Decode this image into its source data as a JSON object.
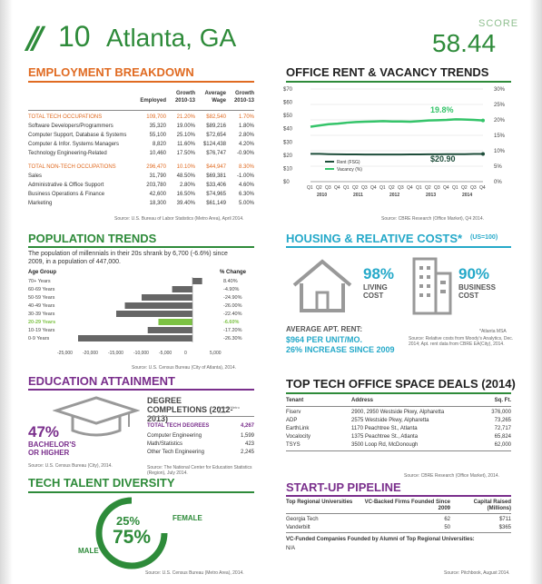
{
  "header": {
    "slashes": "//",
    "rank": "10",
    "city": "Atlanta, GA",
    "score_label": "SCORE",
    "score": "58.44"
  },
  "employment": {
    "title": "EMPLOYMENT BREAKDOWN",
    "col_headers": [
      "Employed",
      "Growth 2010-13",
      "Average Wage",
      "Growth 2010-13"
    ],
    "rows": [
      {
        "label": "TOTAL TECH OCCUPATIONS",
        "employed": "109,700",
        "growth": "21.20%",
        "wage": "$82,540",
        "wgrowth": "1.70%",
        "highlight": true
      },
      {
        "label": "Software Developers/Programmers",
        "employed": "35,320",
        "growth": "19.00%",
        "wage": "$89,216",
        "wgrowth": "1.80%"
      },
      {
        "label": "Computer Support, Database & Systems",
        "employed": "55,100",
        "growth": "25.10%",
        "wage": "$72,654",
        "wgrowth": "2.80%"
      },
      {
        "label": "Computer & Infor. Systems Managers",
        "employed": "8,820",
        "growth": "11.60%",
        "wage": "$124,438",
        "wgrowth": "4.20%"
      },
      {
        "label": "Technology Engineering-Related",
        "employed": "10,460",
        "growth": "17.50%",
        "wage": "$76,747",
        "wgrowth": "-0.90%"
      },
      {
        "label": "TOTAL NON-TECH OCCUPATIONS",
        "employed": "296,470",
        "growth": "10.10%",
        "wage": "$44,947",
        "wgrowth": "8.30%",
        "highlight": true
      },
      {
        "label": "Sales",
        "employed": "31,790",
        "growth": "48.50%",
        "wage": "$69,381",
        "wgrowth": "-1.00%"
      },
      {
        "label": "Administrative & Office Support",
        "employed": "203,780",
        "growth": "2.80%",
        "wage": "$33,406",
        "wgrowth": "4.60%"
      },
      {
        "label": "Business Operations & Finance",
        "employed": "42,600",
        "growth": "16.50%",
        "wage": "$74,965",
        "wgrowth": "6.30%"
      },
      {
        "label": "Marketing",
        "employed": "18,300",
        "growth": "39.40%",
        "wage": "$61,149",
        "wgrowth": "5.00%"
      }
    ],
    "source": "Source: U.S. Bureau of Labor Statistics (Metro Area), April 2014."
  },
  "office": {
    "title": "OFFICE RENT & VACANCY TRENDS",
    "source": "Source: CBRE Research (Office Market), Q4 2014.",
    "chart_data": {
      "type": "line",
      "x": [
        "Q1",
        "Q2",
        "Q3",
        "Q4",
        "Q1",
        "Q2",
        "Q3",
        "Q4",
        "Q1",
        "Q2",
        "Q3",
        "Q4",
        "Q1",
        "Q2",
        "Q3",
        "Q4",
        "Q1",
        "Q2",
        "Q3",
        "Q4"
      ],
      "years": [
        "2010",
        "2011",
        "2012",
        "2013",
        "2014"
      ],
      "left_axis": {
        "ticks": [
          "$70",
          "$60",
          "$50",
          "$40",
          "$30",
          "$20",
          "$10",
          "$0"
        ],
        "ylim": [
          0,
          70
        ]
      },
      "right_axis": {
        "ticks": [
          "30%",
          "25%",
          "20%",
          "15%",
          "10%",
          "5%",
          "0%"
        ],
        "ylim": [
          0,
          30
        ]
      },
      "series": [
        {
          "name": "Rent (FSG)",
          "axis": "left",
          "color": "#1e4d3a",
          "values": [
            21,
            21,
            20.8,
            20.7,
            20.6,
            20.6,
            20.5,
            20.5,
            20.5,
            20.5,
            20.5,
            20.6,
            20.6,
            20.7,
            20.7,
            20.8,
            20.8,
            20.8,
            20.9,
            20.9
          ]
        },
        {
          "name": "Vacancy (%)",
          "axis": "right",
          "color": "#35c46a",
          "values": [
            17.8,
            18.2,
            18.6,
            18.8,
            19.1,
            19.3,
            19.4,
            19.5,
            19.6,
            19.5,
            19.5,
            19.4,
            19.6,
            19.8,
            19.9,
            20.0,
            20.2,
            20.1,
            20.0,
            19.8
          ]
        }
      ],
      "labels": {
        "rent": "$20.90",
        "vacancy": "19.8%"
      }
    }
  },
  "population": {
    "title": "POPULATION TRENDS",
    "text": "The population of millennials in their 20s shrank by 6,700 (-6.6%) since 2009, in a population of 447,000.",
    "col_age": "Age Group",
    "col_change": "% Change",
    "chart_data": {
      "type": "bar",
      "categories": [
        "70+ Years",
        "60-69 Years",
        "50-59 Years",
        "40-49 Years",
        "30-39 Years",
        "20-29 Years",
        "10-19 Years",
        "0-9 Years"
      ],
      "values": [
        1900,
        -4000,
        -10000,
        -13300,
        -15000,
        -6700,
        -8800,
        -22500
      ],
      "changes": [
        "8.40%",
        "-4.90%",
        "-24.90%",
        "-26.00%",
        "-22.40%",
        "-6.60%",
        "-17.20%",
        "-26.30%"
      ],
      "highlight_index": 5,
      "xticks": [
        "-25,000",
        "-20,000",
        "-15,000",
        "-10,000",
        "-5,000",
        "0",
        "5,000"
      ],
      "xlim": [
        -25000,
        5000
      ]
    },
    "source": "Source: U.S. Census Bureau (City of Atlanta), 2014."
  },
  "housing": {
    "title": "HOUSING & RELATIVE COSTS*",
    "index": "(US=100)",
    "living_pct": "98%",
    "living_label": "LIVING COST",
    "business_pct": "90%",
    "business_label": "BUSINESS COST",
    "avg_rent_label": "AVERAGE APT. RENT:",
    "avg_rent_value": "$964 PER UNIT/MO.",
    "increase": "26% INCREASE SINCE 2009",
    "note1": "*Atlanta MSA",
    "note2": "Source: Relative costs from Moody's Analytics, Dec. 2014; Apt. rent data from CBRE EA(City), 2014."
  },
  "education": {
    "title": "EDUCATION ATTAINMENT",
    "pct": "47%",
    "pct_label": "BACHELOR'S OR HIGHER",
    "degree_title": "DEGREE COMPLETIONS (2012-2013)",
    "degree_note": "Atlanta Metro Area",
    "rows": [
      {
        "label": "TOTAL TECH DEGREES",
        "value": "4,267",
        "highlight": true
      },
      {
        "label": "Computer Engineering",
        "value": "1,599"
      },
      {
        "label": "Math/Statistics",
        "value": "423"
      },
      {
        "label": "Other Tech Engineering",
        "value": "2,245"
      }
    ],
    "source_left": "Source: U.S. Census Bureau (City), 2014.",
    "source_right": "Source: The National Center for Education Statistics (Region), July 2014."
  },
  "deals": {
    "title": "TOP TECH OFFICE SPACE DEALS (2014)",
    "headers": [
      "Tenant",
      "Address",
      "Sq. Ft."
    ],
    "rows": [
      {
        "tenant": "Fiserv",
        "address": "2900, 2950 Westside Pkwy, Alpharetta",
        "sqft": "376,000"
      },
      {
        "tenant": "ADP",
        "address": "2575 Westside Pkwy, Alpharetta",
        "sqft": "73,265"
      },
      {
        "tenant": "EarthLink",
        "address": "1170 Peachtree St., Atlanta",
        "sqft": "72,717"
      },
      {
        "tenant": "Vocalocity",
        "address": "1375 Peachtree St., Atlanta",
        "sqft": "65,824"
      },
      {
        "tenant": "TSYS",
        "address": "3500 Loop Rd, McDonough",
        "sqft": "62,000"
      }
    ],
    "source": "Source: CBRE Research (Office Market), 2014."
  },
  "diversity": {
    "title": "TECH TALENT DIVERSITY",
    "female_pct": "25%",
    "female_label": "FEMALE",
    "male_pct": "75%",
    "male_label": "MALE",
    "chart_data": {
      "type": "pie",
      "categories": [
        "Female",
        "Male"
      ],
      "values": [
        25,
        75
      ]
    },
    "source": "Source: U.S. Census Bureau (Metro Area), 2014."
  },
  "startup": {
    "title": "START-UP PIPELINE",
    "headers": [
      "Top Regional Universities",
      "VC-Backed Firms Founded Since 2009",
      "Capital Raised (Millions)"
    ],
    "rows": [
      {
        "uni": "Georgia Tech",
        "firms": "62",
        "capital": "$711"
      },
      {
        "uni": "Vanderbilt",
        "firms": "50",
        "capital": "$365"
      }
    ],
    "alumni_label": "VC-Funded Companies Founded by Alumni of Top Regional Universities:",
    "alumni_value": "N/A",
    "source": "Source: Pitchbook, August 2014."
  },
  "colors": {
    "green": "#2e8b3a",
    "orange": "#e06b22",
    "purple": "#7a2f8c",
    "cyan": "#25a9c9",
    "lightgreen": "#7cc243"
  }
}
